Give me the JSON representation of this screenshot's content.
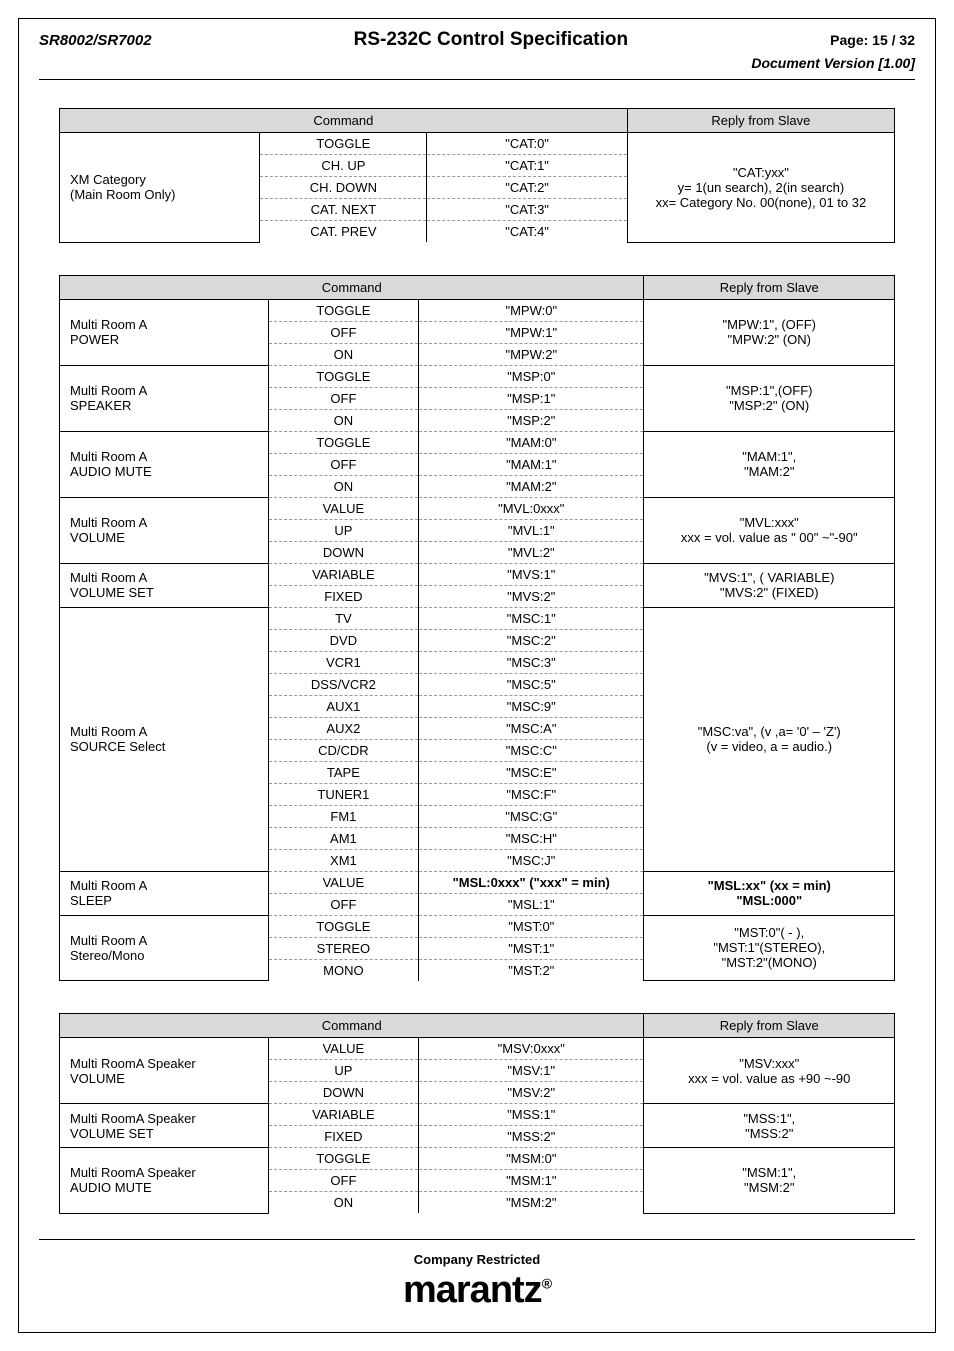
{
  "header": {
    "model": "SR8002/SR7002",
    "title": "RS-232C Control Specification",
    "page": "Page: 15 / 32",
    "doc_version": "Document Version [1.00]"
  },
  "table1": {
    "headers": {
      "command": "Command",
      "reply": "Reply from Slave"
    },
    "label": "XM Category\n(Main Room Only)",
    "rows": [
      {
        "cmd": "TOGGLE",
        "val": "\"CAT:0\""
      },
      {
        "cmd": "CH. UP",
        "val": "\"CAT:1\""
      },
      {
        "cmd": "CH. DOWN",
        "val": "\"CAT:2\""
      },
      {
        "cmd": "CAT. NEXT",
        "val": "\"CAT:3\""
      },
      {
        "cmd": "CAT. PREV",
        "val": "\"CAT:4\""
      }
    ],
    "reply": "\"CAT:yxx\"\ny= 1(un search), 2(in search)\nxx= Category No. 00(none), 01 to 32"
  },
  "table2": {
    "headers": {
      "command": "Command",
      "reply": "Reply from Slave"
    },
    "groups": [
      {
        "label": "Multi Room A\nPOWER",
        "rows": [
          {
            "cmd": "TOGGLE",
            "val": "\"MPW:0\""
          },
          {
            "cmd": "OFF",
            "val": "\"MPW:1\""
          },
          {
            "cmd": "ON",
            "val": "\"MPW:2\""
          }
        ],
        "reply": "\"MPW:1\", (OFF)\n\"MPW:2\" (ON)"
      },
      {
        "label": "Multi Room A\nSPEAKER",
        "rows": [
          {
            "cmd": "TOGGLE",
            "val": "\"MSP:0\""
          },
          {
            "cmd": "OFF",
            "val": "\"MSP:1\""
          },
          {
            "cmd": "ON",
            "val": "\"MSP:2\""
          }
        ],
        "reply": "\"MSP:1\",(OFF)\n\"MSP:2\" (ON)"
      },
      {
        "label": "Multi Room A\nAUDIO MUTE",
        "rows": [
          {
            "cmd": "TOGGLE",
            "val": "\"MAM:0\""
          },
          {
            "cmd": "OFF",
            "val": "\"MAM:1\""
          },
          {
            "cmd": "ON",
            "val": "\"MAM:2\""
          }
        ],
        "reply": "\"MAM:1\",\n\"MAM:2\""
      },
      {
        "label": "Multi Room A\nVOLUME",
        "rows": [
          {
            "cmd": "VALUE",
            "val": "\"MVL:0xxx\""
          },
          {
            "cmd": "UP",
            "val": "\"MVL:1\""
          },
          {
            "cmd": "DOWN",
            "val": "\"MVL:2\""
          }
        ],
        "reply": "\"MVL:xxx\"\nxxx = vol. value as \" 00\" ~\"-90\""
      },
      {
        "label": "Multi Room A\nVOLUME SET",
        "rows": [
          {
            "cmd": "VARIABLE",
            "val": "\"MVS:1\""
          },
          {
            "cmd": "FIXED",
            "val": "\"MVS:2\""
          }
        ],
        "reply": "\"MVS:1\", ( VARIABLE)\n\"MVS:2\" (FIXED)"
      },
      {
        "label": "Multi Room A\nSOURCE Select",
        "rows": [
          {
            "cmd": "TV",
            "val": "\"MSC:1\""
          },
          {
            "cmd": "DVD",
            "val": "\"MSC:2\""
          },
          {
            "cmd": "VCR1",
            "val": "\"MSC:3\""
          },
          {
            "cmd": "DSS/VCR2",
            "val": "\"MSC:5\""
          },
          {
            "cmd": "AUX1",
            "val": "\"MSC:9\""
          },
          {
            "cmd": "AUX2",
            "val": "\"MSC:A\""
          },
          {
            "cmd": "CD/CDR",
            "val": "\"MSC:C\""
          },
          {
            "cmd": "TAPE",
            "val": "\"MSC:E\""
          },
          {
            "cmd": "TUNER1",
            "val": "\"MSC:F\""
          },
          {
            "cmd": "FM1",
            "val": "\"MSC:G\""
          },
          {
            "cmd": "AM1",
            "val": "\"MSC:H\""
          },
          {
            "cmd": "XM1",
            "val": "\"MSC:J\""
          }
        ],
        "reply": "\"MSC:va\", (v ,a= '0' – 'Z')\n(v = video, a = audio.)"
      },
      {
        "label": "Multi Room A\nSLEEP",
        "rows": [
          {
            "cmd": "VALUE",
            "val": "\"MSL:0xxx\"   (\"xxx\" = min)",
            "bold": true
          },
          {
            "cmd": "OFF",
            "val": "\"MSL:1\""
          }
        ],
        "reply": "\"MSL:xx\" (xx = min)\n\"MSL:000\"",
        "reply_bold": true
      },
      {
        "label": "Multi Room A\nStereo/Mono",
        "rows": [
          {
            "cmd": "TOGGLE",
            "val": "\"MST:0\""
          },
          {
            "cmd": "STEREO",
            "val": "\"MST:1\""
          },
          {
            "cmd": "MONO",
            "val": "\"MST:2\""
          }
        ],
        "reply": "\"MST:0\"( - ),\n\"MST:1\"(STEREO),\n\"MST:2\"(MONO)"
      }
    ]
  },
  "table3": {
    "headers": {
      "command": "Command",
      "reply": "Reply from Slave"
    },
    "groups": [
      {
        "label": "Multi RoomA Speaker\nVOLUME",
        "rows": [
          {
            "cmd": "VALUE",
            "val": "\"MSV:0xxx\""
          },
          {
            "cmd": "UP",
            "val": "\"MSV:1\""
          },
          {
            "cmd": "DOWN",
            "val": "\"MSV:2\""
          }
        ],
        "reply": "\"MSV:xxx\"\nxxx = vol. value as +90 ~-90"
      },
      {
        "label": "Multi RoomA Speaker\nVOLUME SET",
        "rows": [
          {
            "cmd": "VARIABLE",
            "val": "\"MSS:1\""
          },
          {
            "cmd": "FIXED",
            "val": "\"MSS:2\""
          }
        ],
        "reply": "\"MSS:1\",\n\"MSS:2\""
      },
      {
        "label": "Multi RoomA Speaker\nAUDIO MUTE",
        "rows": [
          {
            "cmd": "TOGGLE",
            "val": "\"MSM:0\""
          },
          {
            "cmd": "OFF",
            "val": "\"MSM:1\""
          },
          {
            "cmd": "ON",
            "val": "\"MSM:2\""
          }
        ],
        "reply": "\"MSM:1\",\n\"MSM:2\""
      }
    ]
  },
  "footer": {
    "text": "Company Restricted",
    "logo": "marantz",
    "reg": "®"
  },
  "layout": {
    "col_widths_t1": [
      "24%",
      "20%",
      "24%",
      "32%"
    ],
    "col_widths": [
      "25%",
      "18%",
      "27%",
      "30%"
    ]
  }
}
